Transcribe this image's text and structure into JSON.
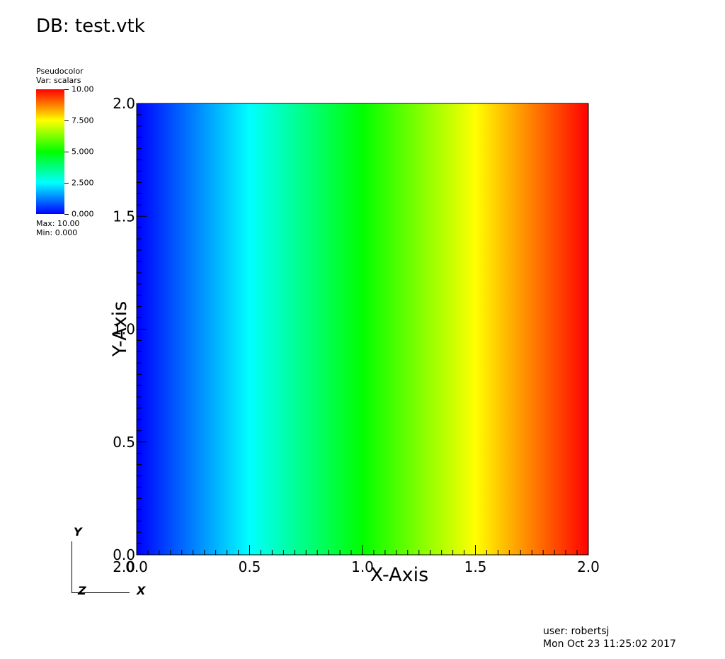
{
  "database_title": "DB: test.vtk",
  "legend": {
    "plot_type": "Pseudocolor",
    "variable": "Var: scalars",
    "tick_labels": [
      "10.00",
      "7.500",
      "5.000",
      "2.500",
      "0.000"
    ],
    "max_label": "Max:  10.00",
    "min_label": "Min:  0.000",
    "colors": [
      "#0000ff",
      "#00ffff",
      "#00ff00",
      "#ffff00",
      "#ff0000"
    ]
  },
  "triad": {
    "x_label": "X",
    "y_label": "Y",
    "z_label": "Z"
  },
  "footer": {
    "user": "user: robertsj",
    "timestamp": "Mon Oct 23 11:25:02 2017"
  },
  "chart_data": {
    "type": "heatmap",
    "title": "",
    "xlabel": "X-Axis",
    "ylabel": "Y-Axis",
    "xlim": [
      0.0,
      2.0
    ],
    "ylim": [
      0.0,
      2.0
    ],
    "x_ticks": [
      0.0,
      0.5,
      1.0,
      1.5,
      2.0
    ],
    "y_ticks": [
      0.0,
      0.5,
      1.0,
      1.5,
      2.0
    ],
    "x_tick_labels": [
      "0.0",
      "0.5",
      "1.0",
      "1.5",
      "2.0"
    ],
    "y_tick_labels": [
      "0.0",
      "0.5",
      "1.0",
      "1.5",
      "2.0"
    ],
    "color_range": [
      0.0,
      10.0
    ],
    "field": {
      "description_of_values": "scalars",
      "x": [
        0.0,
        0.5,
        1.0,
        1.5,
        2.0
      ],
      "scalars": [
        0.0,
        2.5,
        5.0,
        7.5,
        10.0
      ]
    },
    "grid": false
  }
}
